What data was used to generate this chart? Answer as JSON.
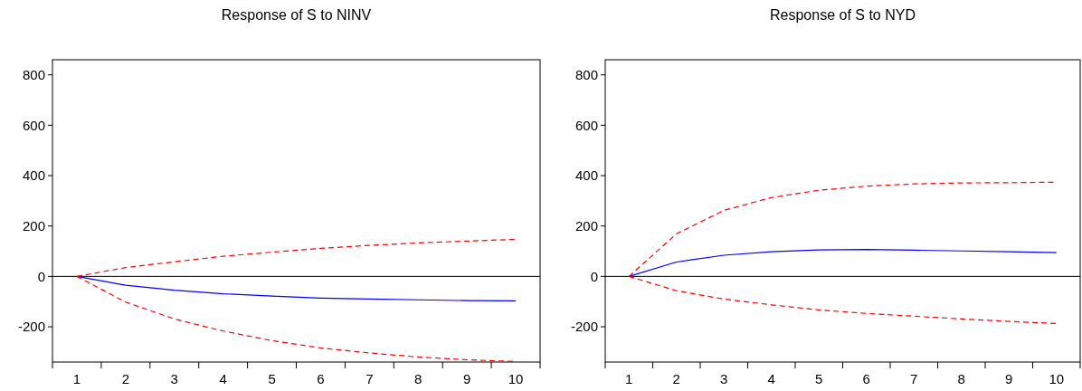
{
  "chart_data": [
    {
      "type": "line",
      "title": "Response of S to NINV",
      "categories": [
        "1",
        "2",
        "3",
        "4",
        "5",
        "6",
        "7",
        "8",
        "9",
        "10"
      ],
      "ylim": [
        -340,
        860
      ],
      "yticks": [
        -200,
        0,
        200,
        400,
        600,
        800
      ],
      "grid": false,
      "ref_lines": [
        {
          "axis": "y",
          "value": 0,
          "color": "#000000"
        }
      ],
      "series": [
        {
          "color": "#0000ff",
          "line_style": "solid",
          "values": [
            0,
            -35,
            -55,
            -69,
            -78,
            -86,
            -90,
            -93,
            -96,
            -97
          ]
        },
        {
          "color": "#ff0000",
          "line_style": "dashed",
          "values": [
            0,
            35,
            58,
            80,
            96,
            111,
            123,
            133,
            140,
            147
          ]
        },
        {
          "color": "#ff0000",
          "line_style": "dashed",
          "values": [
            0,
            -102,
            -169,
            -217,
            -255,
            -284,
            -304,
            -320,
            -331,
            -338
          ]
        }
      ]
    },
    {
      "type": "line",
      "title": "Response of S to NYD",
      "categories": [
        "1",
        "2",
        "3",
        "4",
        "5",
        "6",
        "7",
        "8",
        "9",
        "10"
      ],
      "ylim": [
        -340,
        860
      ],
      "yticks": [
        -200,
        0,
        200,
        400,
        600,
        800
      ],
      "grid": false,
      "ref_lines": [
        {
          "axis": "y",
          "value": 0,
          "color": "#000000"
        }
      ],
      "series": [
        {
          "color": "#0000ff",
          "line_style": "solid",
          "values": [
            0,
            57,
            84,
            98,
            105,
            107,
            104,
            101,
            98,
            94
          ]
        },
        {
          "color": "#ff0000",
          "line_style": "dashed",
          "values": [
            0,
            169,
            262,
            313,
            342,
            358,
            367,
            371,
            372,
            374
          ]
        },
        {
          "color": "#ff0000",
          "line_style": "dashed",
          "values": [
            0,
            -57,
            -90,
            -113,
            -133,
            -147,
            -158,
            -169,
            -179,
            -187
          ]
        }
      ]
    }
  ]
}
